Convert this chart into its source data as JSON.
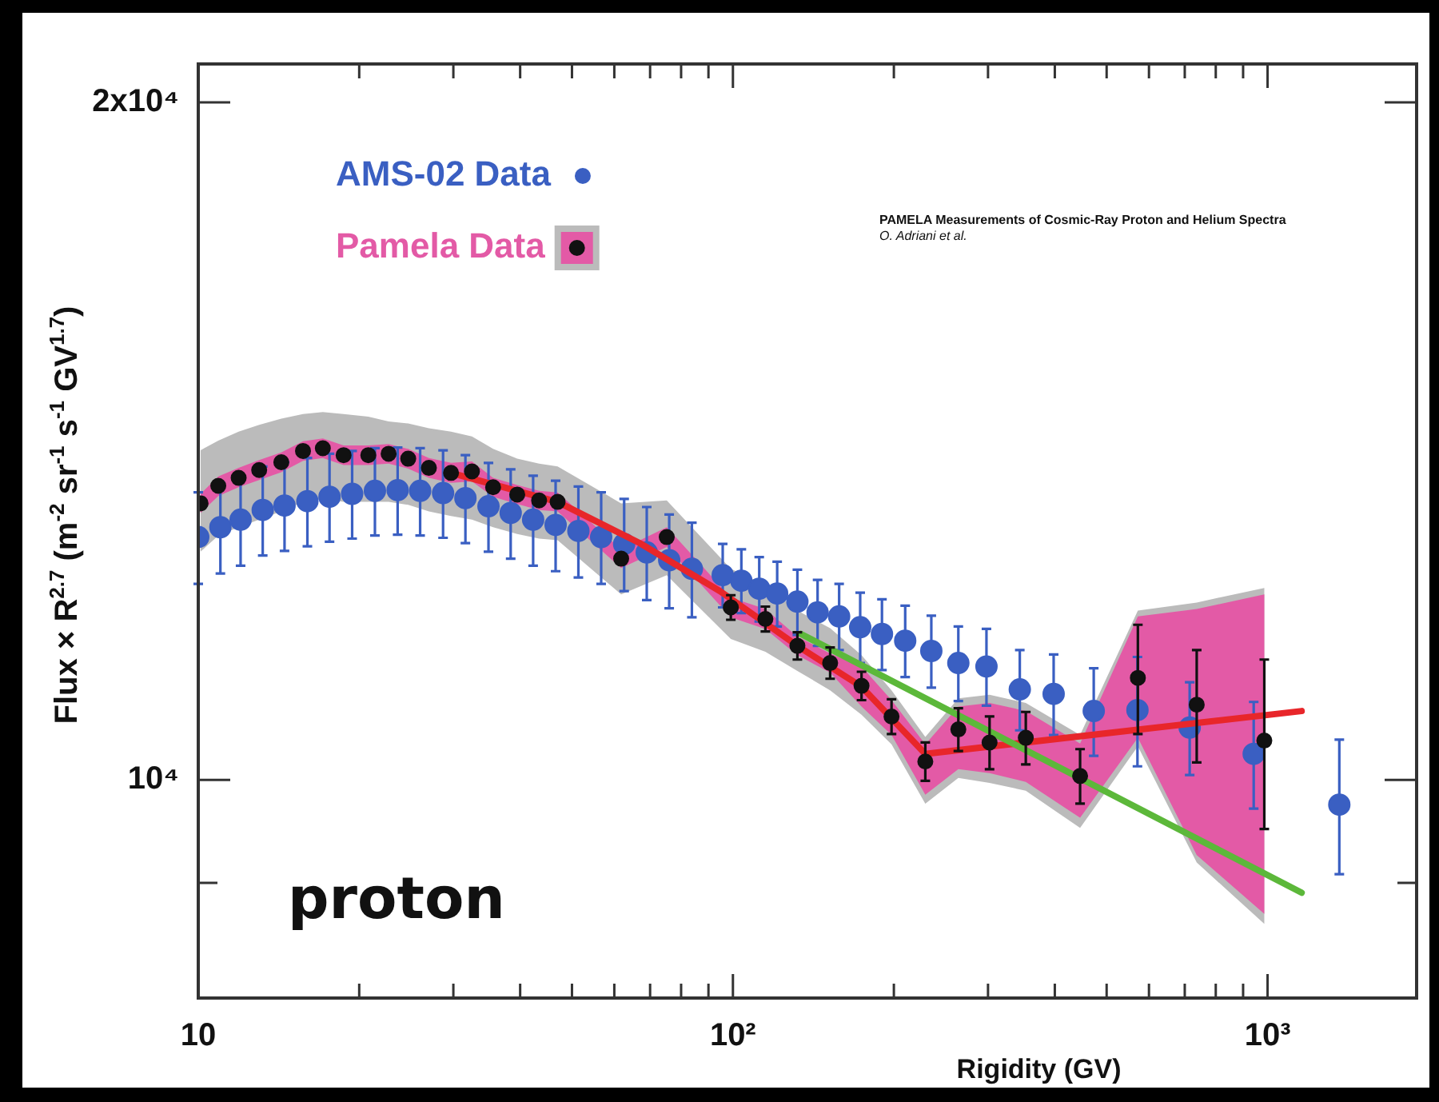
{
  "chart_data": {
    "type": "scatter",
    "xlabel": "Rigidity (GV)",
    "ylabel": "Flux × R$^{2.7}$ (m$^{-2}$ sr$^{-1}$ s$^{-1}$ GV$^{1.7}$)",
    "log": "xy",
    "xlim": [
      10,
      1900
    ],
    "ylim": [
      8000,
      20800
    ],
    "xticks": [
      {
        "value": 10,
        "label": "10"
      },
      {
        "value": 20,
        "label": null
      },
      {
        "value": 30,
        "label": null
      },
      {
        "value": 40,
        "label": null
      },
      {
        "value": 50,
        "label": null
      },
      {
        "value": 60,
        "label": null
      },
      {
        "value": 70,
        "label": null
      },
      {
        "value": 80,
        "label": null
      },
      {
        "value": 90,
        "label": null
      },
      {
        "value": 100,
        "label": "10²"
      },
      {
        "value": 200,
        "label": null
      },
      {
        "value": 300,
        "label": null
      },
      {
        "value": 400,
        "label": null
      },
      {
        "value": 500,
        "label": null
      },
      {
        "value": 600,
        "label": null
      },
      {
        "value": 700,
        "label": null
      },
      {
        "value": 800,
        "label": null
      },
      {
        "value": 900,
        "label": null
      },
      {
        "value": 1000,
        "label": "10³"
      }
    ],
    "yticks": [
      {
        "value": 9000,
        "label": null
      },
      {
        "value": 10000,
        "label": "10⁴"
      },
      {
        "value": 20000,
        "label": "2x10⁴"
      }
    ],
    "grid": false,
    "legend": "top left",
    "marker": "circle",
    "annotations": [
      "proton",
      "PAMELA Measurements of Cosmic-Ray Proton and Helium Spectra",
      "O. Adriani et al."
    ],
    "series": [
      {
        "name": "AMS-02 Data",
        "color": "#3a5fc2",
        "x": [
          10,
          11,
          12,
          13.2,
          14.5,
          16,
          17.6,
          19.4,
          21.4,
          23.6,
          26,
          28.7,
          31.6,
          34.9,
          38.4,
          42.3,
          46.6,
          51.4,
          56.7,
          62.6,
          69,
          76,
          83.8,
          95.7,
          103.7,
          112,
          121,
          132,
          144,
          158,
          173,
          190,
          210,
          235,
          264,
          298,
          344,
          398,
          473,
          571,
          715,
          942,
          1362
        ],
        "values": [
          12820,
          12950,
          13050,
          13180,
          13240,
          13300,
          13360,
          13400,
          13440,
          13450,
          13440,
          13410,
          13340,
          13230,
          13140,
          13050,
          12980,
          12900,
          12820,
          12730,
          12620,
          12520,
          12410,
          12330,
          12260,
          12160,
          12100,
          12000,
          11870,
          11820,
          11690,
          11610,
          11530,
          11410,
          11270,
          11230,
          10970,
          10920,
          10730,
          10740,
          10550,
          10270,
          9750
        ],
        "errors": [
          600,
          600,
          600,
          600,
          600,
          600,
          600,
          600,
          600,
          600,
          600,
          600,
          600,
          600,
          600,
          600,
          600,
          600,
          600,
          600,
          600,
          600,
          600,
          400,
          400,
          400,
          400,
          400,
          400,
          400,
          420,
          420,
          420,
          420,
          430,
          440,
          450,
          450,
          480,
          600,
          500,
          560,
          670
        ]
      },
      {
        "color": "#bbbbbb",
        "x": [
          10.1,
          10.9,
          11.9,
          13.0,
          14.3,
          15.7,
          17.1,
          18.7,
          20.8,
          22.7,
          24.7,
          27.0,
          29.7,
          32.5,
          35.6,
          39.5,
          43.4,
          47.0,
          61.8,
          75.2,
          99.1,
          115,
          132,
          152,
          174,
          198,
          229,
          264,
          302,
          353,
          446,
          572,
          737,
          986
        ],
        "values": [
          null,
          null,
          null,
          null,
          null,
          null,
          null,
          null,
          null,
          null,
          null,
          null,
          null,
          null,
          null,
          null,
          null,
          null,
          null,
          null,
          null,
          null,
          null,
          null,
          null,
          null,
          null,
          null,
          null,
          null,
          null,
          null,
          null,
          null
        ],
        "upper": [
          14010,
          14150,
          14280,
          14380,
          14470,
          14540,
          14570,
          14540,
          14500,
          14430,
          14400,
          14330,
          14280,
          14210,
          14030,
          13890,
          13820,
          13780,
          13270,
          13310,
          12410,
          12210,
          11890,
          11680,
          11360,
          10960,
          10450,
          10870,
          10910,
          10820,
          10470,
          11890,
          11990,
          12170
        ],
        "lower": [
          12630,
          12840,
          12950,
          13050,
          13160,
          13290,
          13330,
          13290,
          13290,
          13290,
          13250,
          13160,
          13100,
          13050,
          12950,
          12860,
          12800,
          12780,
          12090,
          12330,
          11550,
          11400,
          11180,
          10960,
          10690,
          10370,
          9760,
          10020,
          9970,
          9890,
          9520,
          10350,
          9190,
          8630
        ]
      },
      {
        "color": "#e35aa6",
        "x": [
          10.1,
          10.9,
          11.9,
          13.0,
          14.3,
          15.7,
          17.1,
          18.7,
          20.8,
          22.7,
          24.7,
          27.0,
          29.7,
          32.5,
          35.6,
          39.5,
          43.4,
          47.0,
          61.8,
          75.2,
          99.1,
          115,
          132,
          152,
          174,
          198,
          229,
          264,
          302,
          353,
          446,
          572,
          737,
          986
        ],
        "values": [
          null,
          null,
          null,
          null,
          null,
          null,
          null,
          null,
          null,
          null,
          null,
          null,
          null,
          null,
          null,
          null,
          null,
          null,
          null,
          null,
          null,
          null,
          null,
          null,
          null,
          null,
          null,
          null,
          null,
          null,
          null,
          null,
          null,
          null
        ],
        "upper": [
          13400,
          13640,
          13760,
          13870,
          13980,
          14140,
          14180,
          14080,
          14080,
          14100,
          14030,
          13900,
          13830,
          13850,
          13620,
          13520,
          13440,
          13420,
          12660,
          12950,
          12050,
          11910,
          11580,
          11380,
          11230,
          10850,
          10370,
          10780,
          10820,
          10730,
          10380,
          11820,
          11910,
          12090
        ],
        "lower": [
          13140,
          13370,
          13490,
          13590,
          13700,
          13860,
          13900,
          13800,
          13800,
          13820,
          13750,
          13620,
          13550,
          13570,
          13360,
          13260,
          13180,
          13160,
          12420,
          12690,
          11810,
          11670,
          11360,
          11160,
          10780,
          10470,
          9850,
          10110,
          10070,
          9980,
          9620,
          10440,
          9260,
          8720
        ]
      },
      {
        "type": "line",
        "marker": "none",
        "color": "#e8262a",
        "x": [
          29.7,
          47.0,
          67.0,
          94.6,
          132,
          174,
          229,
          1158
        ],
        "values": [
          13690,
          13290,
          12740,
          12130,
          11470,
          11000,
          10270,
          10730
        ]
      },
      {
        "type": "line",
        "marker": "none",
        "color": "#5cb83a",
        "x": [
          134,
          1158
        ],
        "values": [
          11610,
          8910
        ]
      },
      {
        "name": "Pamela Data",
        "color": "#111111",
        "x": [
          10.1,
          10.9,
          11.9,
          13.0,
          14.3,
          15.7,
          17.1,
          18.7,
          20.8,
          22.7,
          24.7,
          27.0,
          29.7,
          32.5,
          35.6,
          39.5,
          43.4,
          47.0,
          61.8,
          75.2,
          99.1,
          115,
          132,
          152,
          174,
          198,
          229,
          264,
          302,
          353,
          446,
          572,
          737,
          986
        ],
        "values": [
          13270,
          13510,
          13620,
          13730,
          13840,
          14000,
          14040,
          13940,
          13940,
          13960,
          13890,
          13760,
          13690,
          13710,
          13490,
          13390,
          13310,
          13290,
          12540,
          12820,
          11930,
          11790,
          11470,
          11270,
          11010,
          10670,
          10190,
          10530,
          10390,
          10440,
          10040,
          11100,
          10800,
          10410
        ],
        "errors": [
          null,
          null,
          null,
          null,
          null,
          null,
          null,
          null,
          null,
          null,
          null,
          null,
          null,
          null,
          null,
          null,
          null,
          null,
          null,
          null,
          150,
          150,
          160,
          180,
          160,
          190,
          200,
          230,
          280,
          280,
          280,
          620,
          620,
          900
        ]
      }
    ]
  }
}
